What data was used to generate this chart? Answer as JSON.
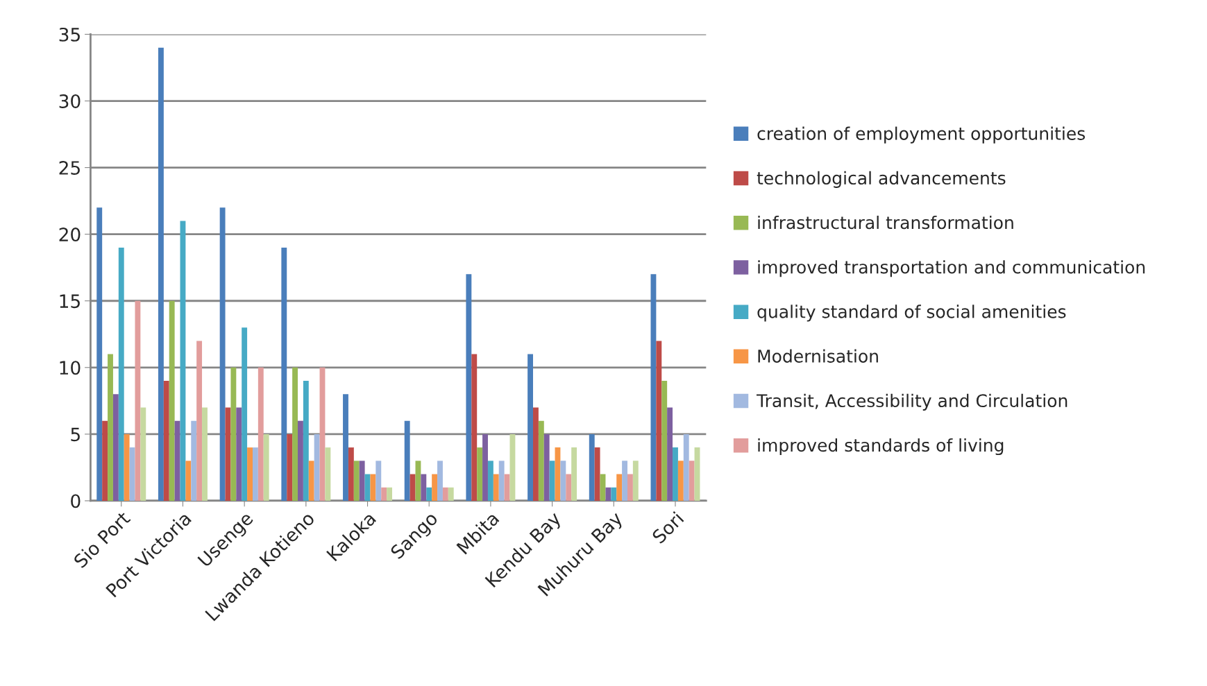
{
  "chart_data": {
    "type": "bar",
    "categories": [
      "Sio Port",
      "Port Victoria",
      "Usenge",
      "Lwanda Kotieno",
      "Kaloka",
      "Sango",
      "Mbita",
      "Kendu Bay",
      "Muhuru Bay",
      "Sori"
    ],
    "series": [
      {
        "name": "creation of employment opportunities",
        "color": "#4a7ebb",
        "values": [
          22,
          34,
          22,
          19,
          8,
          6,
          17,
          11,
          5,
          17
        ]
      },
      {
        "name": "technological advancements",
        "color": "#be4b48",
        "values": [
          6,
          9,
          7,
          5,
          4,
          2,
          11,
          7,
          4,
          12
        ]
      },
      {
        "name": "infrastructural transformation",
        "color": "#98b954",
        "values": [
          11,
          15,
          10,
          10,
          3,
          3,
          4,
          6,
          2,
          9
        ]
      },
      {
        "name": "improved transportation and communication",
        "color": "#7d60a0",
        "values": [
          8,
          6,
          7,
          6,
          3,
          2,
          5,
          5,
          1,
          7
        ]
      },
      {
        "name": "quality standard of social amenities",
        "color": "#46aac5",
        "values": [
          19,
          21,
          13,
          9,
          2,
          1,
          3,
          3,
          1,
          4
        ]
      },
      {
        "name": "Modernisation",
        "color": "#f79646",
        "values": [
          5,
          3,
          4,
          3,
          2,
          2,
          2,
          4,
          2,
          3
        ]
      },
      {
        "name": "Transit, Accessibility and Circulation",
        "color": "#a2b9e0",
        "values": [
          4,
          6,
          4,
          5,
          3,
          3,
          3,
          3,
          3,
          5
        ]
      },
      {
        "name": "improved standards of living",
        "color": "#e29d9c",
        "values": [
          15,
          12,
          10,
          10,
          1,
          1,
          2,
          2,
          2,
          3
        ]
      },
      {
        "color": "#c6d9a0",
        "values": [
          7,
          7,
          5,
          4,
          1,
          1,
          5,
          4,
          3,
          4
        ]
      }
    ],
    "ylim": [
      0,
      35
    ],
    "yticks": [
      0,
      5,
      10,
      15,
      20,
      25,
      30,
      35
    ],
    "grid": "y",
    "legend": "right"
  }
}
